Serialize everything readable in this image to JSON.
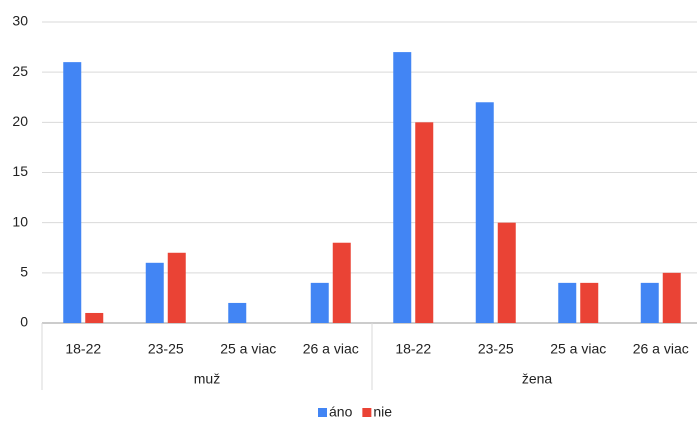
{
  "chart_data": {
    "type": "bar",
    "categories": [
      "18-22",
      "23-25",
      "25 a viac",
      "26 a viac",
      "18-22",
      "23-25",
      "25 a viac",
      "26 a viac"
    ],
    "groups": [
      "muž",
      "žena"
    ],
    "series": [
      {
        "name": "áno",
        "color": "#4285f4",
        "values": [
          26,
          6,
          2,
          4,
          27,
          22,
          4,
          4
        ]
      },
      {
        "name": "nie",
        "color": "#ea4335",
        "values": [
          1,
          7,
          0,
          8,
          20,
          10,
          4,
          5
        ]
      }
    ],
    "ylim": [
      0,
      30
    ],
    "yticks": [
      0,
      5,
      10,
      15,
      20,
      25,
      30
    ],
    "grid": true,
    "legend": "bottom"
  }
}
